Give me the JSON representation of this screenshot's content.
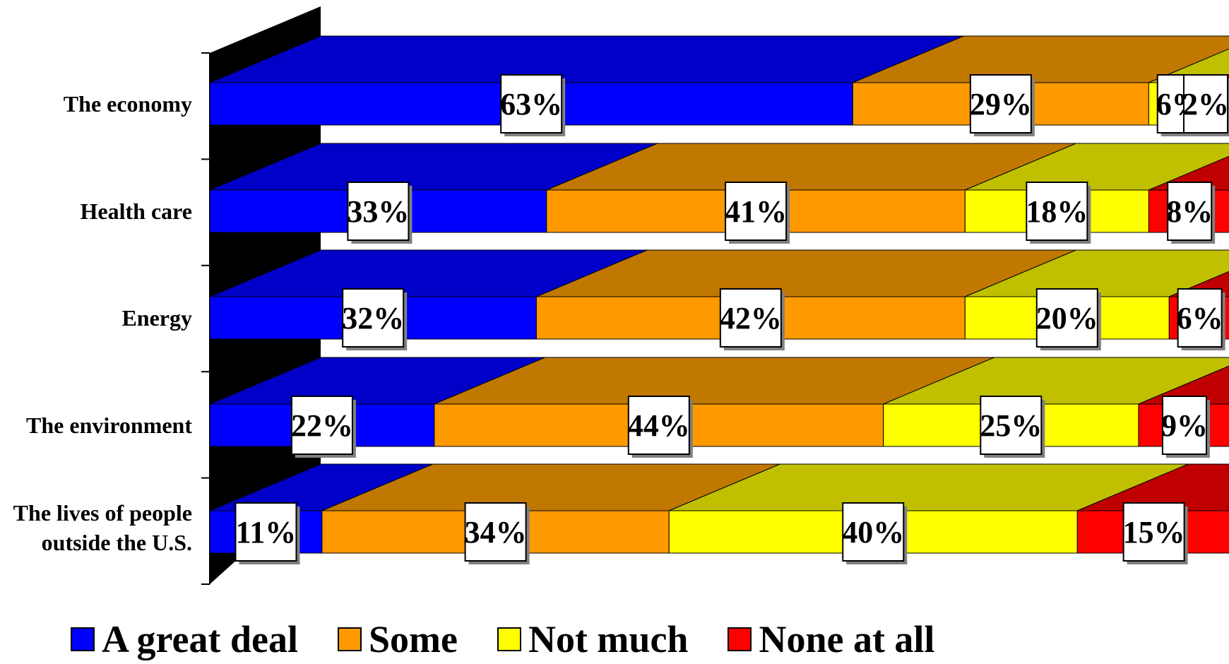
{
  "chart_data": {
    "type": "bar",
    "orientation": "horizontal",
    "stacked": true,
    "percent_stacked": true,
    "three_d": true,
    "categories": [
      "The economy",
      "Health care",
      "Energy",
      "The environment",
      "The lives of people outside the U.S."
    ],
    "category_display": [
      [
        "The economy"
      ],
      [
        "Health care"
      ],
      [
        "Energy"
      ],
      [
        "The environment"
      ],
      [
        "The lives of people",
        "outside the U.S."
      ]
    ],
    "series": [
      {
        "name": "A great deal",
        "values": [
          63,
          33,
          32,
          22,
          11
        ],
        "labels": [
          "63%",
          "33%",
          "32%",
          "22%",
          "11%"
        ],
        "color": "#0000FF",
        "top_color": "#0000C8",
        "side_color": "#00009A"
      },
      {
        "name": "Some",
        "values": [
          29,
          41,
          42,
          44,
          34
        ],
        "labels": [
          "29%",
          "41%",
          "42%",
          "44%",
          "34%"
        ],
        "color": "#FF9900",
        "top_color": "#C07800",
        "side_color": "#8A5500"
      },
      {
        "name": "Not much",
        "values": [
          6,
          18,
          20,
          25,
          40
        ],
        "labels": [
          "6%",
          "18%",
          "20%",
          "25%",
          "40%"
        ],
        "color": "#FFFF00",
        "top_color": "#C0C000",
        "side_color": "#8A8A00"
      },
      {
        "name": "None at all",
        "values": [
          2,
          8,
          6,
          9,
          15
        ],
        "labels": [
          "2%",
          "8%",
          "6%",
          "9%",
          "15%"
        ],
        "color": "#FF0000",
        "top_color": "#C00000",
        "side_color": "#800000"
      }
    ],
    "xlim": [
      0,
      100
    ],
    "grid": false,
    "legend_position": "bottom",
    "axis_wall_color": "#000000"
  }
}
